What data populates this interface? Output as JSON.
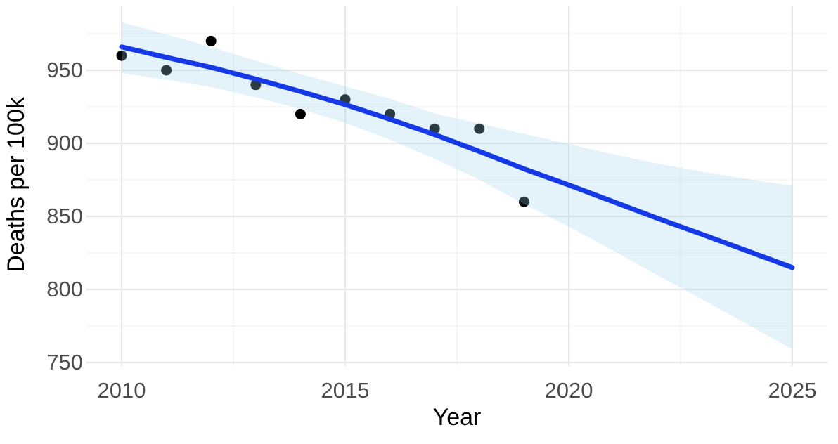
{
  "chart_data": {
    "type": "scatter",
    "title": "",
    "xlabel": "Year",
    "ylabel": "Deaths per 100k",
    "grid": "on",
    "legend": "none",
    "xlim": [
      2009.2,
      2025.8
    ],
    "ylim": [
      747.8,
      994.2
    ],
    "x_ticks": [
      2010,
      2015,
      2020,
      2025
    ],
    "x_minor_ticks": [
      2012.5,
      2017.5,
      2022.5
    ],
    "y_ticks": [
      750,
      800,
      850,
      900,
      950
    ],
    "y_minor_ticks": [
      775,
      825,
      875,
      925,
      975
    ],
    "points": {
      "x": [
        2010,
        2011,
        2012,
        2013,
        2014,
        2015,
        2016,
        2017,
        2018,
        2019
      ],
      "y": [
        960,
        950,
        970,
        940,
        920,
        930,
        920,
        910,
        910,
        860
      ]
    },
    "smooth_line": {
      "x": [
        2010,
        2011,
        2012,
        2013,
        2014,
        2015,
        2016,
        2017,
        2018,
        2019,
        2020,
        2021,
        2022,
        2023,
        2024,
        2025
      ],
      "y": [
        966,
        958.8,
        952,
        944,
        935.5,
        926.5,
        916.5,
        906,
        894.5,
        882.5,
        871.5,
        860,
        848.5,
        837.5,
        826.3,
        815
      ]
    },
    "confidence_band": {
      "x": [
        2010,
        2011,
        2012,
        2013,
        2014,
        2015,
        2016,
        2017,
        2018,
        2019,
        2020,
        2021,
        2022,
        2023,
        2024,
        2025
      ],
      "upper": [
        983,
        974.5,
        966,
        956.5,
        947.5,
        939,
        930.5,
        920.5,
        913.5,
        906.5,
        899.5,
        892.5,
        886,
        880.5,
        875.5,
        871
      ],
      "lower": [
        948,
        943.5,
        938.5,
        931.5,
        923.5,
        914,
        902.5,
        889.5,
        875,
        858.5,
        843,
        826.5,
        809.5,
        793,
        776,
        759
      ]
    }
  },
  "colors": {
    "background": "#ffffff",
    "smooth_line": "#1639e8",
    "band_fill": "#9ed3ee",
    "band_opacity": "0.28",
    "point_fill": "#000000",
    "grid_major": "#e8e8e8",
    "grid_minor": "#f4f4f4",
    "tick_text": "#4d4d4d",
    "axis_title_text": "#000000"
  }
}
